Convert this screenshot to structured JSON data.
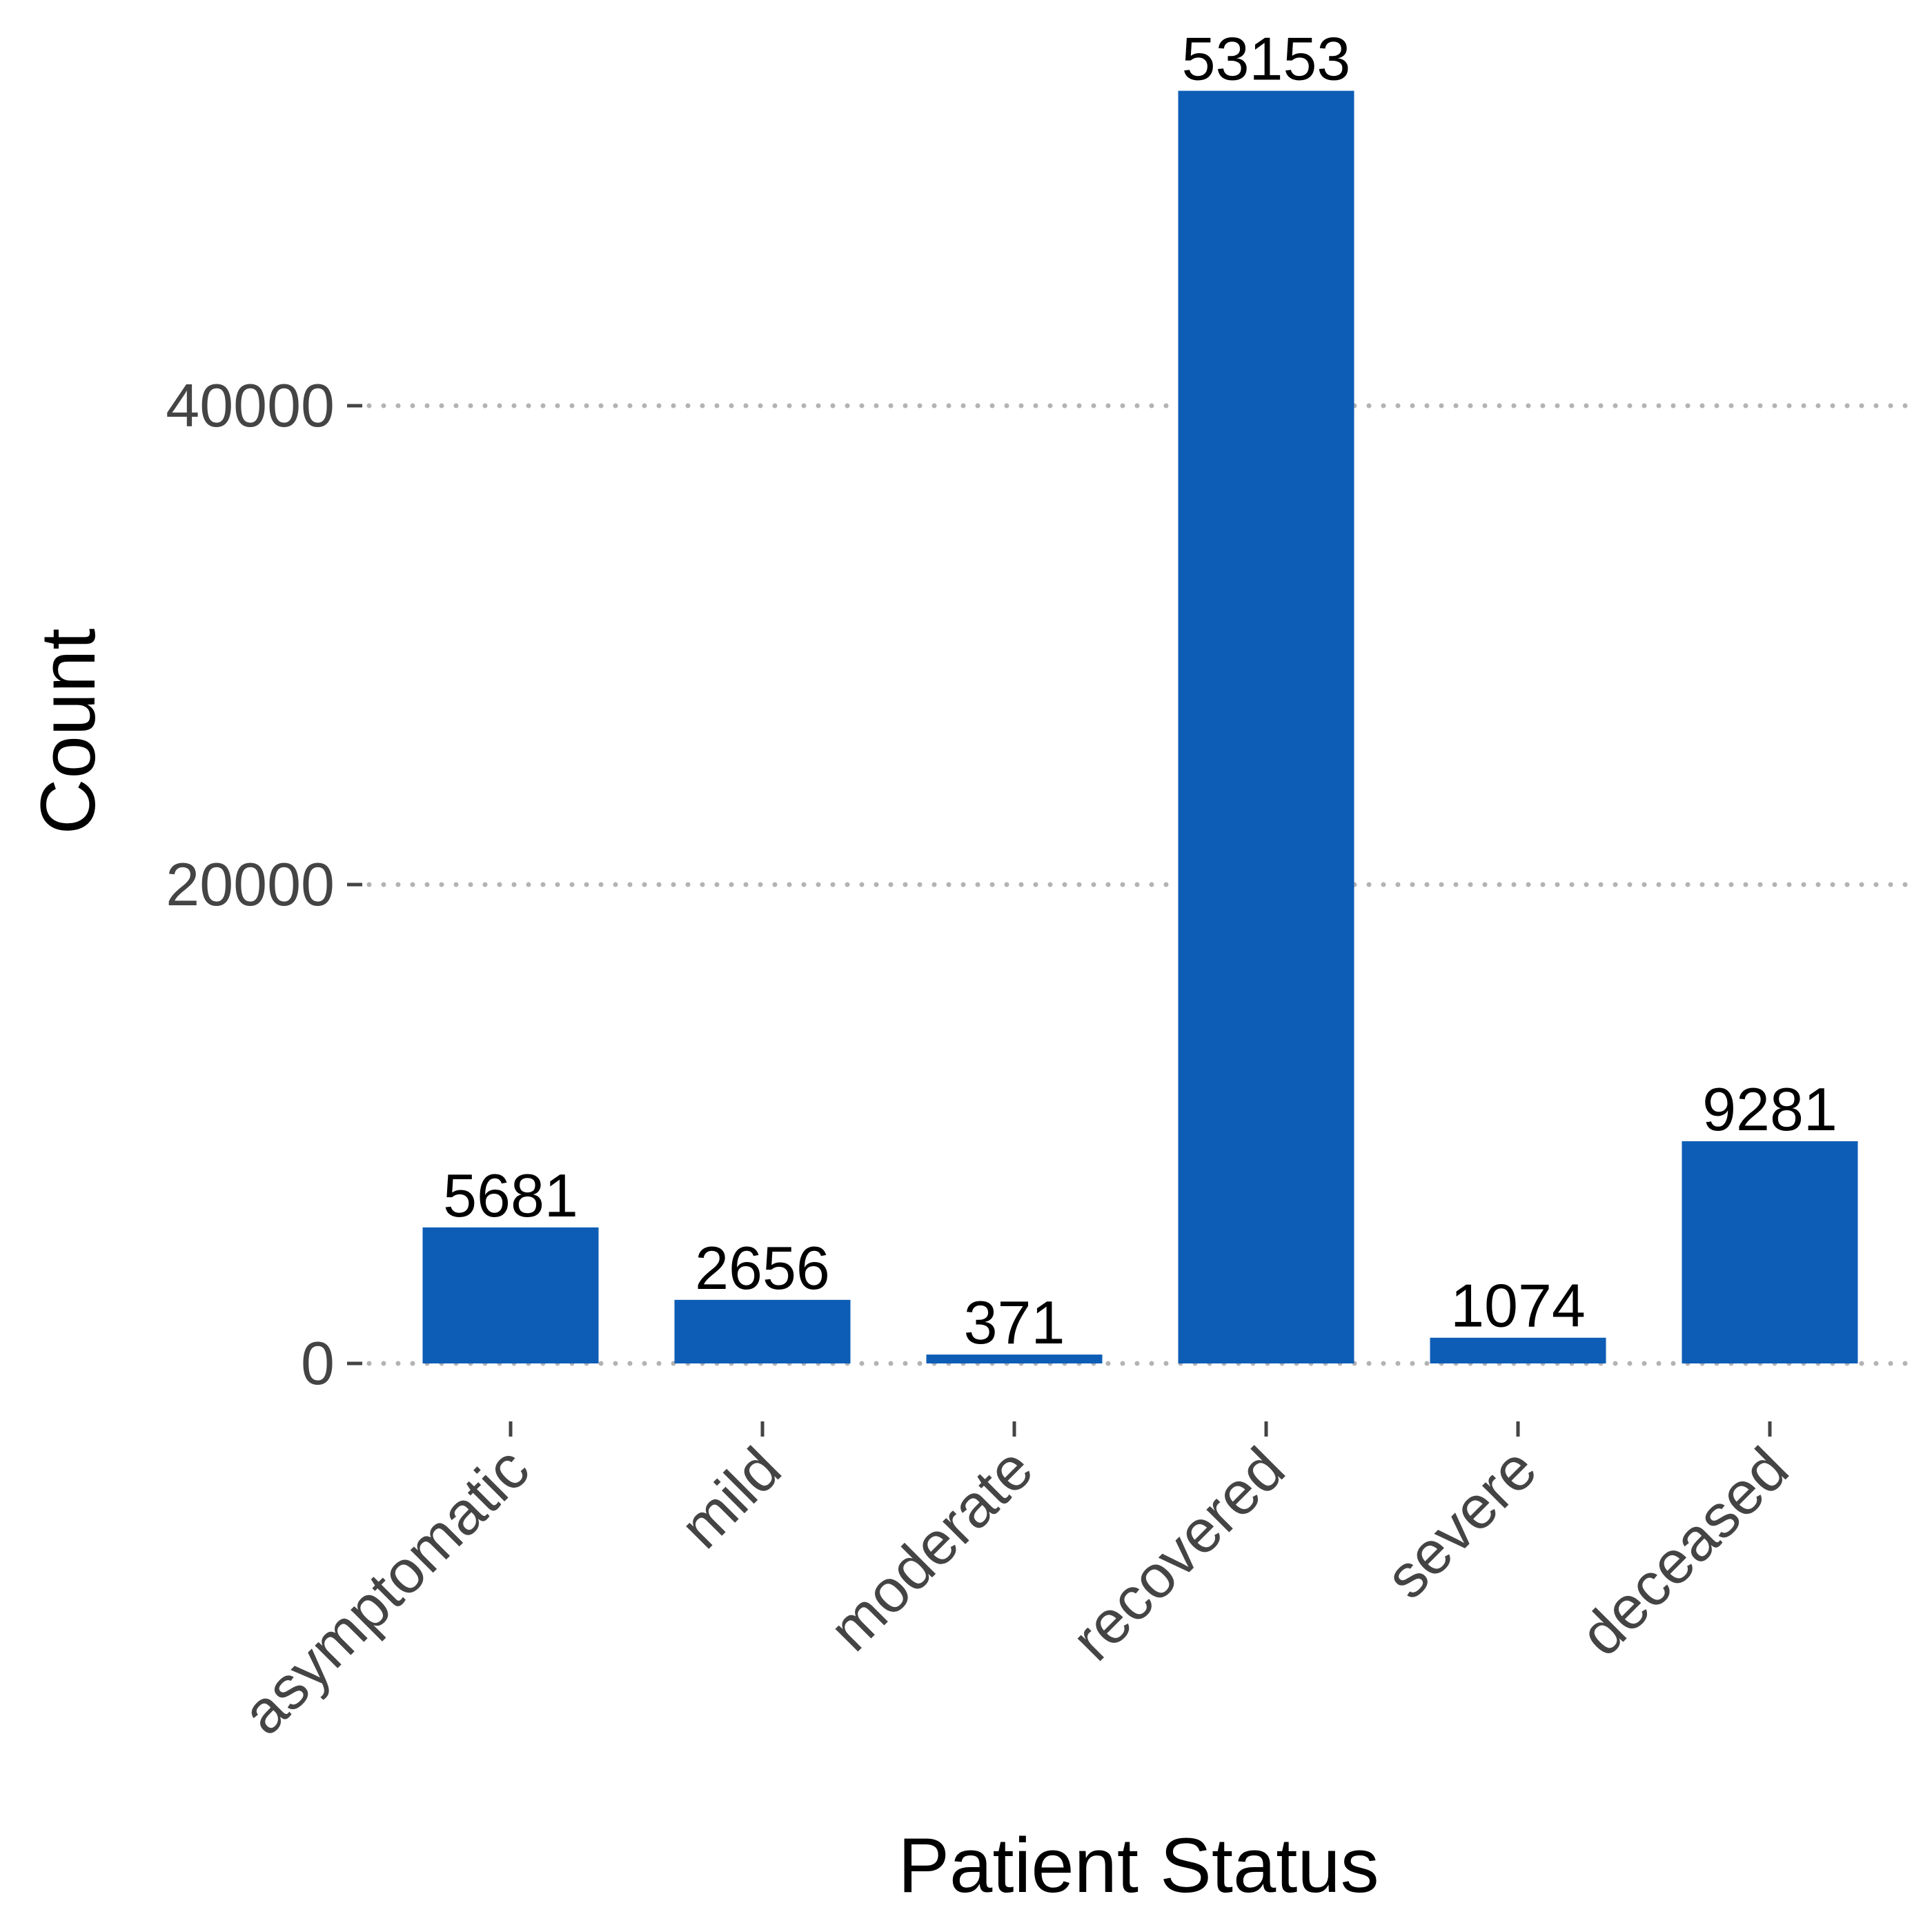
{
  "chart_data": {
    "type": "bar",
    "title": "",
    "xlabel": "Patient Status",
    "ylabel": "Count",
    "categories": [
      "asymptomatic",
      "mild",
      "moderate",
      "recovered",
      "severe",
      "deceased"
    ],
    "values": [
      5681,
      2656,
      371,
      53153,
      1074,
      9281
    ],
    "data_labels": [
      "5681",
      "2656",
      "371",
      "53153",
      "1074",
      "9281"
    ],
    "yticks": [
      0,
      20000,
      40000
    ],
    "ytick_labels": [
      "0",
      "20000",
      "40000"
    ],
    "ylim": [
      0,
      53153
    ],
    "grid": "horizontal-dotted",
    "legend": "none",
    "bar_color": "#0d5db6",
    "grid_color": "#b3b3b3",
    "tick_color": "#444444"
  }
}
